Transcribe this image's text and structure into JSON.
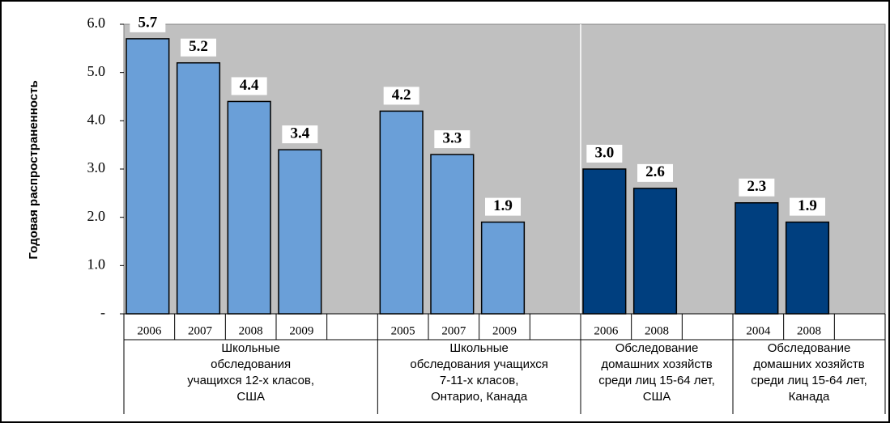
{
  "chart_data": {
    "type": "grouped-bar",
    "y_label": "Годовая распространенность",
    "ylim": [
      0,
      6
    ],
    "yticks": [
      {
        "value": 0,
        "label": "-"
      },
      {
        "value": 1,
        "label": "1.0"
      },
      {
        "value": 2,
        "label": "2.0"
      },
      {
        "value": 3,
        "label": "3.0"
      },
      {
        "value": 4,
        "label": "4.0"
      },
      {
        "value": 5,
        "label": "5.0"
      },
      {
        "value": 6,
        "label": "6.0"
      }
    ],
    "groups": [
      {
        "label": [
          "Школьные",
          "обследования",
          "учащихся 12-х класов,",
          "США"
        ],
        "color": "#6a9fd8",
        "categories": [
          "2006",
          "2007",
          "2008",
          "2009"
        ],
        "values": [
          5.7,
          5.2,
          4.4,
          3.4
        ],
        "value_labels": [
          "5.7",
          "5.2",
          "4.4",
          "3.4"
        ]
      },
      {
        "label": [
          "Школьные",
          "обследования учащихся",
          "7-11-х класов,",
          "Онтарио, Канада"
        ],
        "color": "#6a9fd8",
        "categories": [
          "2005",
          "2007",
          "2009"
        ],
        "values": [
          4.2,
          3.3,
          1.9
        ],
        "value_labels": [
          "4.2",
          "3.3",
          "1.9"
        ]
      },
      {
        "label": [
          "Обследование",
          "домашних хозяйств",
          "среди лиц 15-64 лет,",
          "США"
        ],
        "color": "#003f7f",
        "categories": [
          "2006",
          "2008"
        ],
        "values": [
          3.0,
          2.6
        ],
        "value_labels": [
          "3.0",
          "2.6"
        ]
      },
      {
        "label": [
          "Обследование",
          "домашних хозяйств",
          "среди лиц 15-64 лет,",
          "Канада"
        ],
        "color": "#003f7f",
        "categories": [
          "2004",
          "2008"
        ],
        "values": [
          2.3,
          1.9
        ],
        "value_labels": [
          "2.3",
          "1.9"
        ]
      }
    ]
  }
}
